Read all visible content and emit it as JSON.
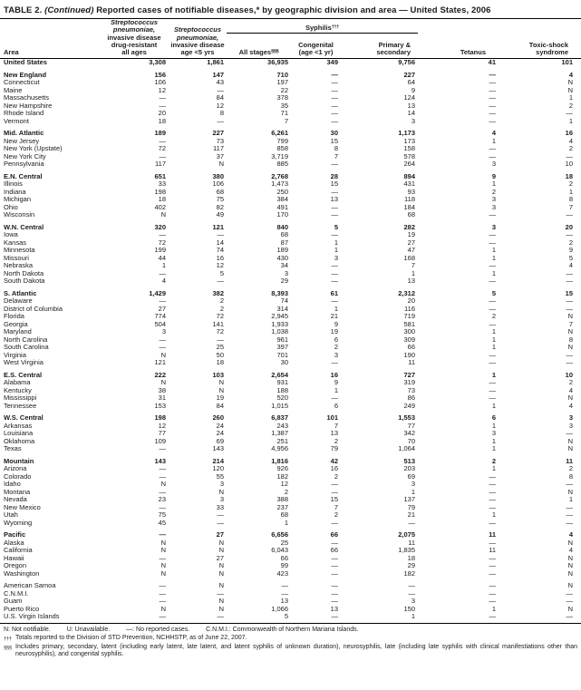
{
  "colors": {
    "text": "#1b1b1b",
    "rule": "#000000"
  },
  "title": {
    "prefix": "TABLE 2.",
    "continued": "(Continued)",
    "rest": "Reported cases of notifiable diseases,* by geographic division and area — United States, 2006"
  },
  "header": {
    "area": "Area",
    "strep_drug_resistant_lines": [
      "Streptococcus",
      "pneumoniae,",
      "invasive disease",
      "drug-resistant",
      "all ages"
    ],
    "strep_under5_lines": [
      "Streptococcus",
      "pneumoniae,",
      "invasive disease",
      "age <5 yrs"
    ],
    "syphilis": {
      "label": "Syphilis",
      "marker": "†††"
    },
    "all_stages": {
      "label": "All stages",
      "marker": "§§§"
    },
    "congenital_lines": [
      "Congenital",
      "(age <1 yr)"
    ],
    "primary_lines": [
      "Primary &",
      "secondary"
    ],
    "tetanus": "Tetanus",
    "toxic_lines": [
      "Toxic-shock",
      "syndrome"
    ]
  },
  "rows": [
    {
      "area": "United States",
      "bold": true,
      "gap": false,
      "values": [
        "3,308",
        "1,861",
        "36,935",
        "349",
        "9,756",
        "41",
        "101"
      ]
    },
    {
      "area": "New England",
      "bold": true,
      "gap": true,
      "values": [
        "156",
        "147",
        "710",
        "—",
        "227",
        "—",
        "4"
      ]
    },
    {
      "area": "Connecticut",
      "bold": false,
      "gap": false,
      "values": [
        "106",
        "43",
        "197",
        "—",
        "64",
        "—",
        "N"
      ]
    },
    {
      "area": "Maine",
      "bold": false,
      "gap": false,
      "values": [
        "12",
        "—",
        "22",
        "—",
        "9",
        "—",
        "N"
      ]
    },
    {
      "area": "Massachusetts",
      "bold": false,
      "gap": false,
      "values": [
        "—",
        "84",
        "378",
        "—",
        "124",
        "—",
        "1"
      ]
    },
    {
      "area": "New Hampshire",
      "bold": false,
      "gap": false,
      "values": [
        "—",
        "12",
        "35",
        "—",
        "13",
        "—",
        "2"
      ]
    },
    {
      "area": "Rhode Island",
      "bold": false,
      "gap": false,
      "values": [
        "20",
        "8",
        "71",
        "—",
        "14",
        "—",
        "—"
      ]
    },
    {
      "area": "Vermont",
      "bold": false,
      "gap": false,
      "values": [
        "18",
        "—",
        "7",
        "—",
        "3",
        "—",
        "1"
      ]
    },
    {
      "area": "Mid. Atlantic",
      "bold": true,
      "gap": true,
      "values": [
        "189",
        "227",
        "6,261",
        "30",
        "1,173",
        "4",
        "16"
      ]
    },
    {
      "area": "New Jersey",
      "bold": false,
      "gap": false,
      "values": [
        "—",
        "73",
        "799",
        "15",
        "173",
        "1",
        "4"
      ]
    },
    {
      "area": "New York (Upstate)",
      "bold": false,
      "gap": false,
      "values": [
        "72",
        "117",
        "858",
        "8",
        "158",
        "—",
        "2"
      ]
    },
    {
      "area": "New York City",
      "bold": false,
      "gap": false,
      "values": [
        "—",
        "37",
        "3,719",
        "7",
        "578",
        "—",
        "—"
      ]
    },
    {
      "area": "Pennsylvania",
      "bold": false,
      "gap": false,
      "values": [
        "117",
        "N",
        "885",
        "—",
        "264",
        "3",
        "10"
      ]
    },
    {
      "area": "E.N. Central",
      "bold": true,
      "gap": true,
      "values": [
        "651",
        "380",
        "2,768",
        "28",
        "894",
        "9",
        "18"
      ]
    },
    {
      "area": "Illinois",
      "bold": false,
      "gap": false,
      "values": [
        "33",
        "106",
        "1,473",
        "15",
        "431",
        "1",
        "2"
      ]
    },
    {
      "area": "Indiana",
      "bold": false,
      "gap": false,
      "values": [
        "198",
        "68",
        "250",
        "—",
        "93",
        "2",
        "1"
      ]
    },
    {
      "area": "Michigan",
      "bold": false,
      "gap": false,
      "values": [
        "18",
        "75",
        "384",
        "13",
        "118",
        "3",
        "8"
      ]
    },
    {
      "area": "Ohio",
      "bold": false,
      "gap": false,
      "values": [
        "402",
        "82",
        "491",
        "—",
        "184",
        "3",
        "7"
      ]
    },
    {
      "area": "Wisconsin",
      "bold": false,
      "gap": false,
      "values": [
        "N",
        "49",
        "170",
        "—",
        "68",
        "—",
        "—"
      ]
    },
    {
      "area": "W.N. Central",
      "bold": true,
      "gap": true,
      "values": [
        "320",
        "121",
        "840",
        "5",
        "282",
        "3",
        "20"
      ]
    },
    {
      "area": "Iowa",
      "bold": false,
      "gap": false,
      "values": [
        "—",
        "—",
        "68",
        "—",
        "19",
        "—",
        "—"
      ]
    },
    {
      "area": "Kansas",
      "bold": false,
      "gap": false,
      "values": [
        "72",
        "14",
        "87",
        "1",
        "27",
        "—",
        "2"
      ]
    },
    {
      "area": "Minnesota",
      "bold": false,
      "gap": false,
      "values": [
        "199",
        "74",
        "189",
        "1",
        "47",
        "1",
        "9"
      ]
    },
    {
      "area": "Missouri",
      "bold": false,
      "gap": false,
      "values": [
        "44",
        "16",
        "430",
        "3",
        "168",
        "1",
        "5"
      ]
    },
    {
      "area": "Nebraska",
      "bold": false,
      "gap": false,
      "values": [
        "1",
        "12",
        "34",
        "—",
        "7",
        "—",
        "4"
      ]
    },
    {
      "area": "North Dakota",
      "bold": false,
      "gap": false,
      "values": [
        "—",
        "5",
        "3",
        "—",
        "1",
        "1",
        "—"
      ]
    },
    {
      "area": "South Dakota",
      "bold": false,
      "gap": false,
      "values": [
        "4",
        "—",
        "29",
        "—",
        "13",
        "—",
        "—"
      ]
    },
    {
      "area": "S. Atlantic",
      "bold": true,
      "gap": true,
      "values": [
        "1,429",
        "382",
        "8,393",
        "61",
        "2,312",
        "5",
        "15"
      ]
    },
    {
      "area": "Delaware",
      "bold": false,
      "gap": false,
      "values": [
        "—",
        "2",
        "74",
        "—",
        "20",
        "—",
        "—"
      ]
    },
    {
      "area": "District of Columbia",
      "bold": false,
      "gap": false,
      "values": [
        "27",
        "2",
        "314",
        "1",
        "116",
        "—",
        "—"
      ]
    },
    {
      "area": "Florida",
      "bold": false,
      "gap": false,
      "values": [
        "774",
        "72",
        "2,945",
        "21",
        "719",
        "2",
        "N"
      ]
    },
    {
      "area": "Georgia",
      "bold": false,
      "gap": false,
      "values": [
        "504",
        "141",
        "1,933",
        "9",
        "581",
        "—",
        "7"
      ]
    },
    {
      "area": "Maryland",
      "bold": false,
      "gap": false,
      "values": [
        "3",
        "72",
        "1,038",
        "19",
        "300",
        "1",
        "N"
      ]
    },
    {
      "area": "North Carolina",
      "bold": false,
      "gap": false,
      "values": [
        "—",
        "—",
        "961",
        "6",
        "309",
        "1",
        "8"
      ]
    },
    {
      "area": "South Carolina",
      "bold": false,
      "gap": false,
      "values": [
        "—",
        "25",
        "397",
        "2",
        "66",
        "1",
        "N"
      ]
    },
    {
      "area": "Virginia",
      "bold": false,
      "gap": false,
      "values": [
        "N",
        "50",
        "701",
        "3",
        "190",
        "—",
        "—"
      ]
    },
    {
      "area": "West Virginia",
      "bold": false,
      "gap": false,
      "values": [
        "121",
        "18",
        "30",
        "—",
        "11",
        "—",
        "—"
      ]
    },
    {
      "area": "E.S. Central",
      "bold": true,
      "gap": true,
      "values": [
        "222",
        "103",
        "2,654",
        "16",
        "727",
        "1",
        "10"
      ]
    },
    {
      "area": "Alabama",
      "bold": false,
      "gap": false,
      "values": [
        "N",
        "N",
        "931",
        "9",
        "319",
        "—",
        "2"
      ]
    },
    {
      "area": "Kentucky",
      "bold": false,
      "gap": false,
      "values": [
        "38",
        "N",
        "188",
        "1",
        "73",
        "—",
        "4"
      ]
    },
    {
      "area": "Mississippi",
      "bold": false,
      "gap": false,
      "values": [
        "31",
        "19",
        "520",
        "—",
        "86",
        "—",
        "N"
      ]
    },
    {
      "area": "Tennessee",
      "bold": false,
      "gap": false,
      "values": [
        "153",
        "84",
        "1,015",
        "6",
        "249",
        "1",
        "4"
      ]
    },
    {
      "area": "W.S. Central",
      "bold": true,
      "gap": true,
      "values": [
        "198",
        "260",
        "6,837",
        "101",
        "1,553",
        "6",
        "3"
      ]
    },
    {
      "area": "Arkansas",
      "bold": false,
      "gap": false,
      "values": [
        "12",
        "24",
        "243",
        "7",
        "77",
        "1",
        "3"
      ]
    },
    {
      "area": "Louisiana",
      "bold": false,
      "gap": false,
      "values": [
        "77",
        "24",
        "1,387",
        "13",
        "342",
        "3",
        "—"
      ]
    },
    {
      "area": "Oklahoma",
      "bold": false,
      "gap": false,
      "values": [
        "109",
        "69",
        "251",
        "2",
        "70",
        "1",
        "N"
      ]
    },
    {
      "area": "Texas",
      "bold": false,
      "gap": false,
      "values": [
        "—",
        "143",
        "4,956",
        "79",
        "1,064",
        "1",
        "N"
      ]
    },
    {
      "area": "Mountain",
      "bold": true,
      "gap": true,
      "values": [
        "143",
        "214",
        "1,816",
        "42",
        "513",
        "2",
        "11"
      ]
    },
    {
      "area": "Arizona",
      "bold": false,
      "gap": false,
      "values": [
        "—",
        "120",
        "926",
        "16",
        "203",
        "1",
        "2"
      ]
    },
    {
      "area": "Colorado",
      "bold": false,
      "gap": false,
      "values": [
        "—",
        "55",
        "182",
        "2",
        "69",
        "—",
        "8"
      ]
    },
    {
      "area": "Idaho",
      "bold": false,
      "gap": false,
      "values": [
        "N",
        "3",
        "12",
        "—",
        "3",
        "—",
        "—"
      ]
    },
    {
      "area": "Montana",
      "bold": false,
      "gap": false,
      "values": [
        "—",
        "N",
        "2",
        "—",
        "1",
        "—",
        "N"
      ]
    },
    {
      "area": "Nevada",
      "bold": false,
      "gap": false,
      "values": [
        "23",
        "3",
        "388",
        "15",
        "137",
        "—",
        "1"
      ]
    },
    {
      "area": "New Mexico",
      "bold": false,
      "gap": false,
      "values": [
        "—",
        "33",
        "237",
        "7",
        "79",
        "—",
        "—"
      ]
    },
    {
      "area": "Utah",
      "bold": false,
      "gap": false,
      "values": [
        "75",
        "—",
        "68",
        "2",
        "21",
        "1",
        "—"
      ]
    },
    {
      "area": "Wyoming",
      "bold": false,
      "gap": false,
      "values": [
        "45",
        "—",
        "1",
        "—",
        "—",
        "—",
        "—"
      ]
    },
    {
      "area": "Pacific",
      "bold": true,
      "gap": true,
      "values": [
        "—",
        "27",
        "6,656",
        "66",
        "2,075",
        "11",
        "4"
      ]
    },
    {
      "area": "Alaska",
      "bold": false,
      "gap": false,
      "values": [
        "N",
        "N",
        "25",
        "—",
        "11",
        "—",
        "N"
      ]
    },
    {
      "area": "California",
      "bold": false,
      "gap": false,
      "values": [
        "N",
        "N",
        "6,043",
        "66",
        "1,835",
        "11",
        "4"
      ]
    },
    {
      "area": "Hawaii",
      "bold": false,
      "gap": false,
      "values": [
        "—",
        "27",
        "66",
        "—",
        "18",
        "—",
        "N"
      ]
    },
    {
      "area": "Oregon",
      "bold": false,
      "gap": false,
      "values": [
        "N",
        "N",
        "99",
        "—",
        "29",
        "—",
        "N"
      ]
    },
    {
      "area": "Washington",
      "bold": false,
      "gap": false,
      "values": [
        "N",
        "N",
        "423",
        "—",
        "182",
        "—",
        "N"
      ]
    },
    {
      "area": "American Samoa",
      "bold": false,
      "gap": true,
      "values": [
        "—",
        "N",
        "—",
        "—",
        "—",
        "—",
        "N"
      ]
    },
    {
      "area": "C.N.M.I.",
      "bold": false,
      "gap": false,
      "values": [
        "—",
        "—",
        "—",
        "—",
        "—",
        "—",
        "—"
      ]
    },
    {
      "area": "Guam",
      "bold": false,
      "gap": false,
      "values": [
        "—",
        "N",
        "13",
        "—",
        "3",
        "—",
        "—"
      ]
    },
    {
      "area": "Puerto Rico",
      "bold": false,
      "gap": false,
      "values": [
        "N",
        "N",
        "1,066",
        "13",
        "150",
        "1",
        "N"
      ]
    },
    {
      "area": "U.S. Virgin Islands",
      "bold": false,
      "gap": false,
      "values": [
        "—",
        "—",
        "5",
        "—",
        "1",
        "—",
        "—"
      ]
    }
  ],
  "footnotes": {
    "legend": [
      "N: Not notifiable.",
      "U: Unavailable.",
      "—: No reported cases.",
      "C.N.M.I.: Commonwealth of Northern Mariana Islands."
    ],
    "dagger_marker": "†††",
    "dagger_text": "Totals reported to the Division of STD Prevention, NCHHSTP, as of June 22, 2007.",
    "section_marker": "§§§",
    "section_text": "Includes primary, secondary, latent (including early latent, late latent, and latent syphilis of unknown duration), neurosyphilis, late (including late syphilis with clinical manifestiations other than neurosyphilis), and congenital syphilis."
  }
}
